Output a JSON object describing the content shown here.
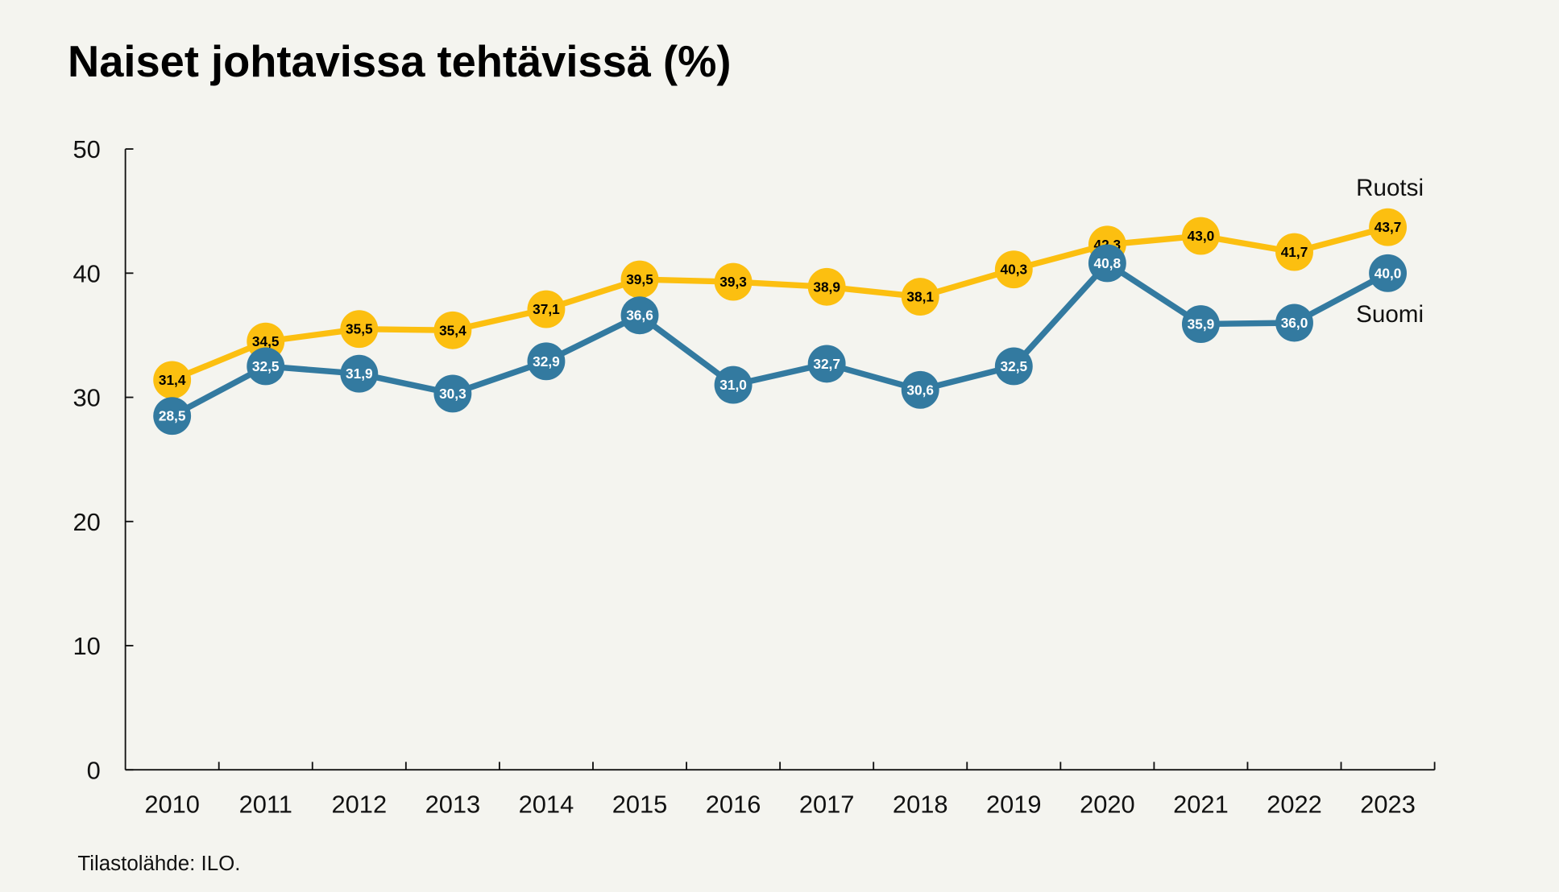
{
  "chart_data": {
    "type": "line",
    "title": "Naiset johtavissa tehtävissä (%)",
    "source": "Tilastolähde: ILO.",
    "xlabel": "",
    "ylabel": "",
    "ylim": [
      0,
      50
    ],
    "yticks": [
      0,
      10,
      20,
      30,
      40,
      50
    ],
    "categories": [
      "2010",
      "2011",
      "2012",
      "2013",
      "2014",
      "2015",
      "2016",
      "2017",
      "2018",
      "2019",
      "2020",
      "2021",
      "2022",
      "2023"
    ],
    "series": [
      {
        "name": "Ruotsi",
        "color": "#fcbf10",
        "label_color": "#000000",
        "values": [
          31.4,
          34.5,
          35.5,
          35.4,
          37.1,
          39.5,
          39.3,
          38.9,
          38.1,
          40.3,
          42.3,
          43.0,
          41.7,
          43.7
        ],
        "labels": [
          "31,4",
          "34,5",
          "35,5",
          "35,4",
          "37,1",
          "39,5",
          "39,3",
          "38,9",
          "38,1",
          "40,3",
          "42,3",
          "43,0",
          "41,7",
          "43,7"
        ]
      },
      {
        "name": "Suomi",
        "color": "#337aa0",
        "label_color": "#ffffff",
        "values": [
          28.5,
          32.5,
          31.9,
          30.3,
          32.9,
          36.6,
          31.0,
          32.7,
          30.6,
          32.5,
          40.8,
          35.9,
          36.0,
          40.0
        ],
        "labels": [
          "28,5",
          "32,5",
          "31,9",
          "30,3",
          "32,9",
          "36,6",
          "31,0",
          "32,7",
          "30,6",
          "32,5",
          "40,8",
          "35,9",
          "36,0",
          "40,0"
        ]
      }
    ],
    "grid": false,
    "legend": "inline-right"
  }
}
